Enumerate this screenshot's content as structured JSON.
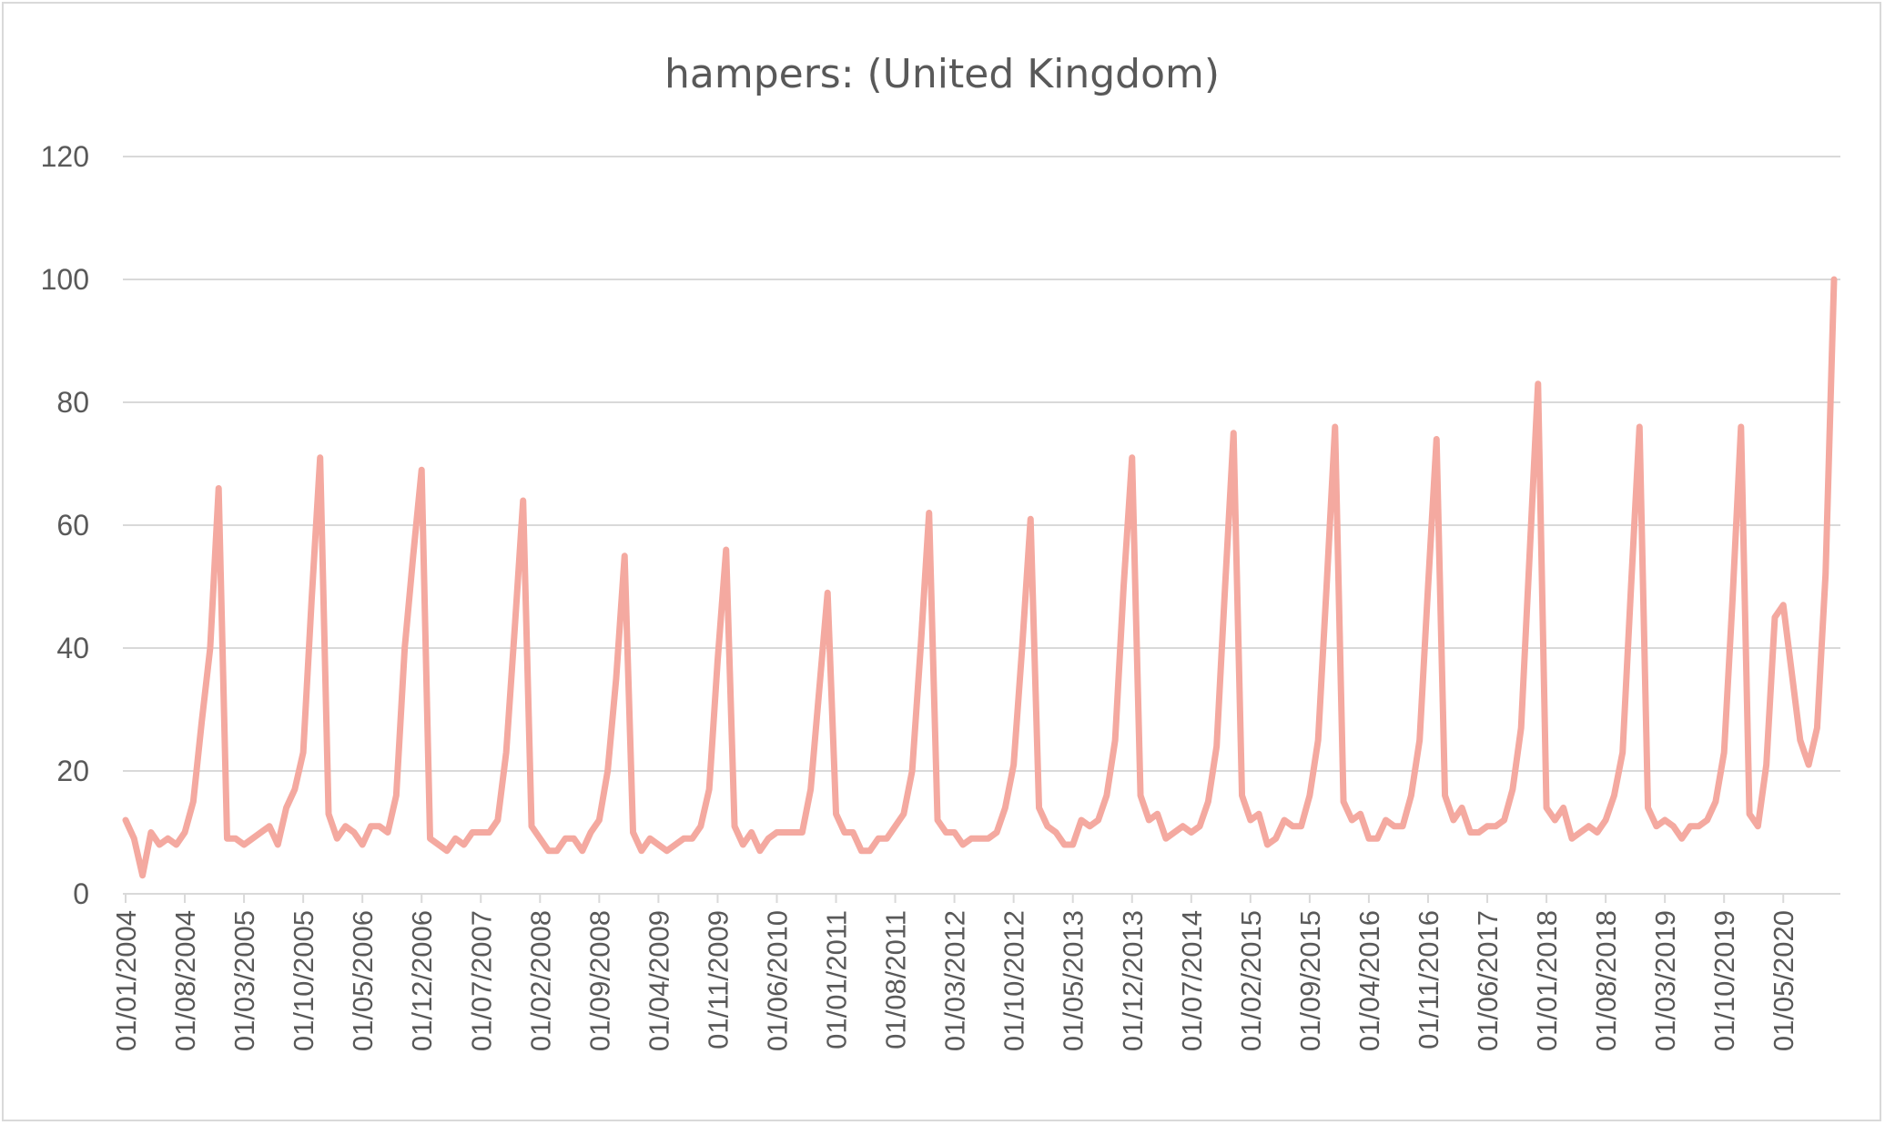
{
  "chart_data": {
    "type": "line",
    "title": "hampers: (United Kingdom)",
    "xlabel": "",
    "ylabel": "",
    "ylim": [
      0,
      120
    ],
    "yticks": [
      0,
      20,
      40,
      60,
      80,
      100,
      120
    ],
    "grid": true,
    "legend": "none",
    "x_start": "2004-01",
    "x_interval": "monthly",
    "x_tick_labels": [
      "01/01/2004",
      "01/08/2004",
      "01/03/2005",
      "01/10/2005",
      "01/05/2006",
      "01/12/2006",
      "01/07/2007",
      "01/02/2008",
      "01/09/2008",
      "01/04/2009",
      "01/11/2009",
      "01/06/2010",
      "01/01/2011",
      "01/08/2011",
      "01/03/2012",
      "01/10/2012",
      "01/05/2013",
      "01/12/2013",
      "01/07/2014",
      "01/02/2015",
      "01/09/2015",
      "01/04/2016",
      "01/11/2016",
      "01/06/2017",
      "01/01/2018",
      "01/08/2018",
      "01/03/2019",
      "01/10/2019",
      "01/05/2020"
    ],
    "series": [
      {
        "color": "#f4a9a0",
        "values": [
          12,
          9,
          3,
          10,
          8,
          9,
          8,
          10,
          15,
          28,
          40,
          66,
          9,
          9,
          8,
          9,
          10,
          11,
          8,
          14,
          17,
          23,
          48,
          71,
          13,
          9,
          11,
          10,
          8,
          11,
          11,
          10,
          16,
          40,
          55,
          69,
          9,
          8,
          7,
          9,
          8,
          10,
          10,
          10,
          12,
          23,
          43,
          64,
          11,
          9,
          7,
          7,
          9,
          9,
          7,
          10,
          12,
          20,
          35,
          55,
          10,
          7,
          9,
          8,
          7,
          8,
          9,
          9,
          11,
          17,
          38,
          56,
          11,
          8,
          10,
          7,
          9,
          10,
          10,
          10,
          10,
          17,
          33,
          49,
          13,
          10,
          10,
          7,
          7,
          9,
          9,
          11,
          13,
          20,
          40,
          62,
          12,
          10,
          10,
          8,
          9,
          9,
          9,
          10,
          14,
          21,
          40,
          61,
          14,
          11,
          10,
          8,
          8,
          12,
          11,
          12,
          16,
          25,
          50,
          71,
          16,
          12,
          13,
          9,
          10,
          11,
          10,
          11,
          15,
          24,
          50,
          75,
          16,
          12,
          13,
          8,
          9,
          12,
          11,
          11,
          16,
          25,
          50,
          76,
          15,
          12,
          13,
          9,
          9,
          12,
          11,
          11,
          16,
          25,
          50,
          74,
          16,
          12,
          14,
          10,
          10,
          11,
          11,
          12,
          17,
          27,
          55,
          83,
          14,
          12,
          14,
          9,
          10,
          11,
          10,
          12,
          16,
          23,
          50,
          76,
          14,
          11,
          12,
          11,
          9,
          11,
          11,
          12,
          15,
          23,
          48,
          76,
          13,
          11,
          21,
          45,
          47,
          36,
          25,
          21,
          27,
          52,
          100
        ]
      }
    ]
  }
}
